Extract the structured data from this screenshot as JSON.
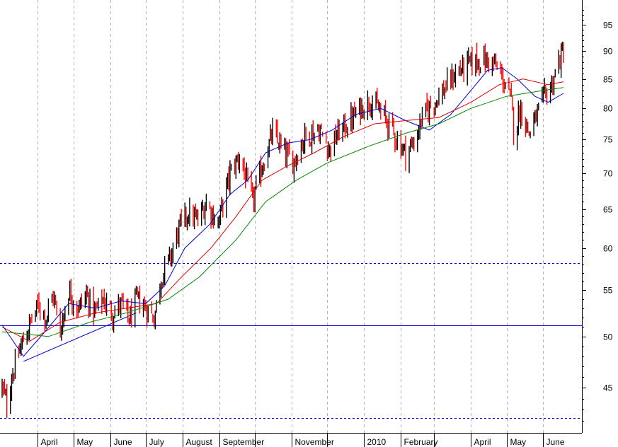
{
  "chart_data": {
    "type": "candlestick",
    "y_scale": "log",
    "ylim": [
      41,
      100
    ],
    "y_ticks": [
      45,
      50,
      55,
      60,
      65,
      70,
      75,
      80,
      85,
      90,
      95
    ],
    "y_tick_labels": [
      "45",
      "50",
      "55",
      "60",
      "65",
      "70",
      "75",
      "80",
      "85",
      "90",
      "95"
    ],
    "x_ticks": [
      {
        "date": "2009-04-01",
        "label": "April"
      },
      {
        "date": "2009-05-01",
        "label": "May"
      },
      {
        "date": "2009-06-01",
        "label": "June"
      },
      {
        "date": "2009-07-01",
        "label": "July"
      },
      {
        "date": "2009-08-01",
        "label": "August"
      },
      {
        "date": "2009-09-01",
        "label": "September"
      },
      {
        "date": "2009-10-01",
        "label": ""
      },
      {
        "date": "2009-11-01",
        "label": "November"
      },
      {
        "date": "2009-12-01",
        "label": ""
      },
      {
        "date": "2010-01-01",
        "label": "2010"
      },
      {
        "date": "2010-02-01",
        "label": "February"
      },
      {
        "date": "2010-03-01",
        "label": ""
      },
      {
        "date": "2010-04-01",
        "label": "April"
      },
      {
        "date": "2010-05-01",
        "label": "May"
      },
      {
        "date": "2010-06-01",
        "label": "June"
      }
    ],
    "x_range": [
      "2009-03-02",
      "2010-06-18"
    ],
    "up_color": "#000000",
    "down_color": "#ff0000",
    "reference_lines": [
      {
        "y": 58.2,
        "style": "dashed",
        "color": "#0000cc"
      },
      {
        "y": 51.2,
        "style": "solid",
        "color": "#0000cc"
      },
      {
        "y": 42.3,
        "style": "dashed",
        "color": "#0000cc"
      }
    ],
    "trendline": {
      "from": {
        "date": "2009-03-20",
        "y": 47.5
      },
      "to": {
        "date": "2009-06-23",
        "y": 52.5
      },
      "color": "#0000cc"
    },
    "moving_averages": [
      {
        "color": "#0000cc",
        "points": [
          [
            "2009-03-02",
            51.2
          ],
          [
            "2009-03-20",
            48.0
          ],
          [
            "2009-04-07",
            50.5
          ],
          [
            "2009-04-27",
            53.5
          ],
          [
            "2009-05-20",
            53.0
          ],
          [
            "2009-06-10",
            53.8
          ],
          [
            "2009-07-01",
            53.5
          ],
          [
            "2009-07-17",
            55.5
          ],
          [
            "2009-08-03",
            60.0
          ],
          [
            "2009-08-24",
            63.0
          ],
          [
            "2009-09-10",
            67.0
          ],
          [
            "2009-09-25",
            69.0
          ],
          [
            "2009-10-10",
            73.0
          ],
          [
            "2009-10-29",
            74.5
          ],
          [
            "2009-11-16",
            75.0
          ],
          [
            "2009-12-05",
            76.5
          ],
          [
            "2009-12-25",
            79.0
          ],
          [
            "2010-01-15",
            80.0
          ],
          [
            "2010-02-05",
            78.0
          ],
          [
            "2010-02-25",
            76.5
          ],
          [
            "2010-03-15",
            79.0
          ],
          [
            "2010-04-01",
            83.0
          ],
          [
            "2010-04-15",
            86.5
          ],
          [
            "2010-04-27",
            87.0
          ],
          [
            "2010-05-10",
            85.0
          ],
          [
            "2010-05-25",
            82.0
          ],
          [
            "2010-06-05",
            81.0
          ],
          [
            "2010-06-18",
            82.5
          ]
        ]
      },
      {
        "color": "#dd0000",
        "points": [
          [
            "2009-03-02",
            51.0
          ],
          [
            "2009-03-25",
            49.5
          ],
          [
            "2009-04-20",
            51.5
          ],
          [
            "2009-05-20",
            52.5
          ],
          [
            "2009-06-15",
            53.0
          ],
          [
            "2009-07-10",
            53.5
          ],
          [
            "2009-07-31",
            56.5
          ],
          [
            "2009-08-25",
            60.0
          ],
          [
            "2009-09-15",
            64.0
          ],
          [
            "2009-10-07",
            69.0
          ],
          [
            "2009-10-28",
            71.0
          ],
          [
            "2009-11-20",
            73.0
          ],
          [
            "2009-12-15",
            75.5
          ],
          [
            "2010-01-10",
            77.5
          ],
          [
            "2010-02-05",
            78.0
          ],
          [
            "2010-03-05",
            78.5
          ],
          [
            "2010-04-01",
            81.0
          ],
          [
            "2010-04-25",
            84.0
          ],
          [
            "2010-05-15",
            85.0
          ],
          [
            "2010-06-05",
            84.0
          ],
          [
            "2010-06-18",
            84.5
          ]
        ]
      },
      {
        "color": "#008800",
        "points": [
          [
            "2009-03-02",
            50.5
          ],
          [
            "2009-04-10",
            50.0
          ],
          [
            "2009-05-15",
            51.5
          ],
          [
            "2009-06-15",
            52.5
          ],
          [
            "2009-07-20",
            54.0
          ],
          [
            "2009-08-15",
            56.5
          ],
          [
            "2009-09-15",
            61.0
          ],
          [
            "2009-10-10",
            66.0
          ],
          [
            "2009-11-05",
            69.0
          ],
          [
            "2009-12-01",
            71.5
          ],
          [
            "2010-01-05",
            74.0
          ],
          [
            "2010-02-05",
            76.0
          ],
          [
            "2010-03-05",
            77.5
          ],
          [
            "2010-04-01",
            80.0
          ],
          [
            "2010-05-01",
            82.0
          ],
          [
            "2010-06-01",
            83.0
          ],
          [
            "2010-06-18",
            83.5
          ]
        ]
      }
    ],
    "price_path": [
      [
        "2009-03-02",
        45.0
      ],
      [
        "2009-03-06",
        43.5
      ],
      [
        "2009-03-10",
        46.0
      ],
      [
        "2009-03-18",
        49.0
      ],
      [
        "2009-03-26",
        51.5
      ],
      [
        "2009-04-02",
        53.5
      ],
      [
        "2009-04-08",
        52.0
      ],
      [
        "2009-04-14",
        54.5
      ],
      [
        "2009-04-20",
        50.5
      ],
      [
        "2009-04-27",
        55.0
      ],
      [
        "2009-05-05",
        53.0
      ],
      [
        "2009-05-12",
        54.5
      ],
      [
        "2009-05-19",
        52.5
      ],
      [
        "2009-05-26",
        54.0
      ],
      [
        "2009-06-03",
        52.5
      ],
      [
        "2009-06-10",
        53.5
      ],
      [
        "2009-06-17",
        51.8
      ],
      [
        "2009-06-24",
        54.0
      ],
      [
        "2009-07-01",
        53.0
      ],
      [
        "2009-07-08",
        52.0
      ],
      [
        "2009-07-14",
        56.5
      ],
      [
        "2009-07-22",
        59.0
      ],
      [
        "2009-07-28",
        62.0
      ],
      [
        "2009-08-05",
        64.5
      ],
      [
        "2009-08-14",
        63.5
      ],
      [
        "2009-08-21",
        66.0
      ],
      [
        "2009-08-31",
        63.0
      ],
      [
        "2009-09-10",
        70.0
      ],
      [
        "2009-09-18",
        72.5
      ],
      [
        "2009-09-29",
        66.0
      ],
      [
        "2009-10-07",
        71.0
      ],
      [
        "2009-10-16",
        76.0
      ],
      [
        "2009-10-26",
        73.0
      ],
      [
        "2009-11-02",
        71.5
      ],
      [
        "2009-11-12",
        75.5
      ],
      [
        "2009-11-24",
        76.5
      ],
      [
        "2009-12-03",
        73.5
      ],
      [
        "2009-12-10",
        76.0
      ],
      [
        "2009-12-18",
        77.5
      ],
      [
        "2009-12-29",
        80.0
      ],
      [
        "2010-01-06",
        81.5
      ],
      [
        "2010-01-14",
        79.5
      ],
      [
        "2010-01-22",
        77.5
      ],
      [
        "2010-01-29",
        75.0
      ],
      [
        "2010-02-05",
        73.0
      ],
      [
        "2010-02-12",
        74.5
      ],
      [
        "2010-02-19",
        78.5
      ],
      [
        "2010-02-26",
        80.5
      ],
      [
        "2010-03-09",
        83.0
      ],
      [
        "2010-03-19",
        86.0
      ],
      [
        "2010-03-29",
        87.5
      ],
      [
        "2010-04-09",
        88.5
      ],
      [
        "2010-04-19",
        88.0
      ],
      [
        "2010-04-27",
        85.5
      ],
      [
        "2010-05-05",
        81.0
      ],
      [
        "2010-05-07",
        76.5
      ],
      [
        "2010-05-13",
        80.0
      ],
      [
        "2010-05-20",
        76.0
      ],
      [
        "2010-05-27",
        79.0
      ],
      [
        "2010-06-02",
        82.0
      ],
      [
        "2010-06-08",
        84.0
      ],
      [
        "2010-06-14",
        88.0
      ],
      [
        "2010-06-18",
        90.0
      ]
    ]
  }
}
